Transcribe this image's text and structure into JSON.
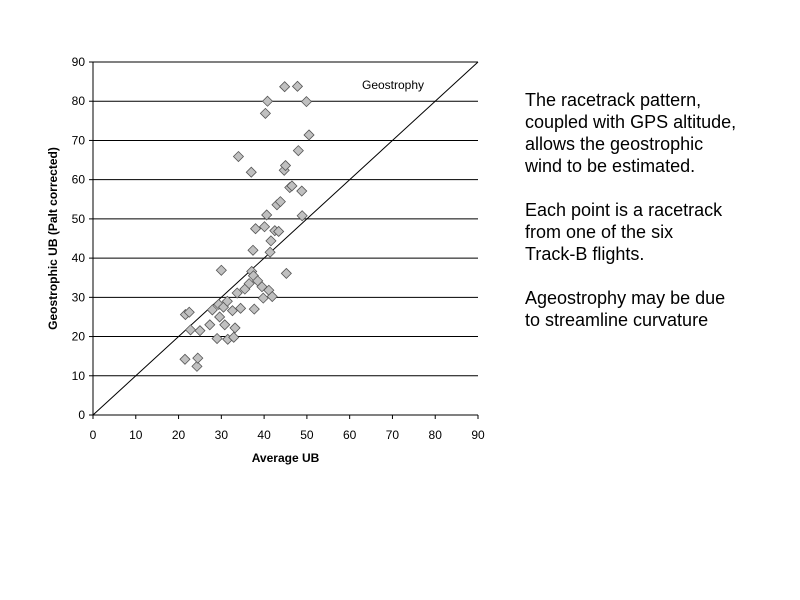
{
  "chart_data": {
    "type": "scatter",
    "xlabel": "Average UB",
    "ylabel": "Geostrophic UB (Palt corrected)",
    "xlim": [
      0,
      90
    ],
    "ylim": [
      0,
      90
    ],
    "x_ticks": [
      0,
      10,
      20,
      30,
      40,
      50,
      60,
      70,
      80,
      90
    ],
    "y_ticks": [
      0,
      10,
      20,
      30,
      40,
      50,
      60,
      70,
      80,
      90
    ],
    "grid": "horizontal",
    "marker": "diamond",
    "marker_color": "#c0c0c0",
    "line": {
      "label": "Geostrophy",
      "from": [
        0,
        0
      ],
      "to": [
        90,
        90
      ]
    },
    "points": [
      [
        21.5,
        14.2
      ],
      [
        21.6,
        25.6
      ],
      [
        22.5,
        26.2
      ],
      [
        22.8,
        21.7
      ],
      [
        24.3,
        12.4
      ],
      [
        24.5,
        14.5
      ],
      [
        25.0,
        21.5
      ],
      [
        27.3,
        23.0
      ],
      [
        27.9,
        26.8
      ],
      [
        29.0,
        19.5
      ],
      [
        29.4,
        28.2
      ],
      [
        29.6,
        25.0
      ],
      [
        30.0,
        36.9
      ],
      [
        30.5,
        27.5
      ],
      [
        30.8,
        23.0
      ],
      [
        31.4,
        29.0
      ],
      [
        31.5,
        19.3
      ],
      [
        32.6,
        26.6
      ],
      [
        32.9,
        19.8
      ],
      [
        33.2,
        22.2
      ],
      [
        33.7,
        31.1
      ],
      [
        34.0,
        65.9
      ],
      [
        34.5,
        27.2
      ],
      [
        35.5,
        32.1
      ],
      [
        36.5,
        33.5
      ],
      [
        37.0,
        61.9
      ],
      [
        37.1,
        36.6
      ],
      [
        37.4,
        42.0
      ],
      [
        37.5,
        35.5
      ],
      [
        37.7,
        27.0
      ],
      [
        38.0,
        47.5
      ],
      [
        38.5,
        34.2
      ],
      [
        39.5,
        32.7
      ],
      [
        39.8,
        29.8
      ],
      [
        40.1,
        48.0
      ],
      [
        40.3,
        76.9
      ],
      [
        40.6,
        51.0
      ],
      [
        40.8,
        80.0
      ],
      [
        41.1,
        31.8
      ],
      [
        41.4,
        41.5
      ],
      [
        41.6,
        44.4
      ],
      [
        41.9,
        30.2
      ],
      [
        42.5,
        47.0
      ],
      [
        43.0,
        53.6
      ],
      [
        43.4,
        46.8
      ],
      [
        43.8,
        54.4
      ],
      [
        44.7,
        62.4
      ],
      [
        44.8,
        83.7
      ],
      [
        45.0,
        63.6
      ],
      [
        45.2,
        36.1
      ],
      [
        46.0,
        58.0
      ],
      [
        46.5,
        58.4
      ],
      [
        47.8,
        83.8
      ],
      [
        48.0,
        67.4
      ],
      [
        48.8,
        57.1
      ],
      [
        48.9,
        50.8
      ],
      [
        49.9,
        79.9
      ],
      [
        50.5,
        71.4
      ]
    ]
  },
  "side_text": {
    "p1": [
      "The racetrack pattern,",
      "coupled with GPS altitude,",
      "allows the geostrophic",
      "wind to be estimated."
    ],
    "p2": [
      "Each point is a racetrack",
      "from one of the six",
      "Track-B flights."
    ],
    "p3": [
      "Ageostrophy may be due",
      "to streamline curvature"
    ]
  }
}
